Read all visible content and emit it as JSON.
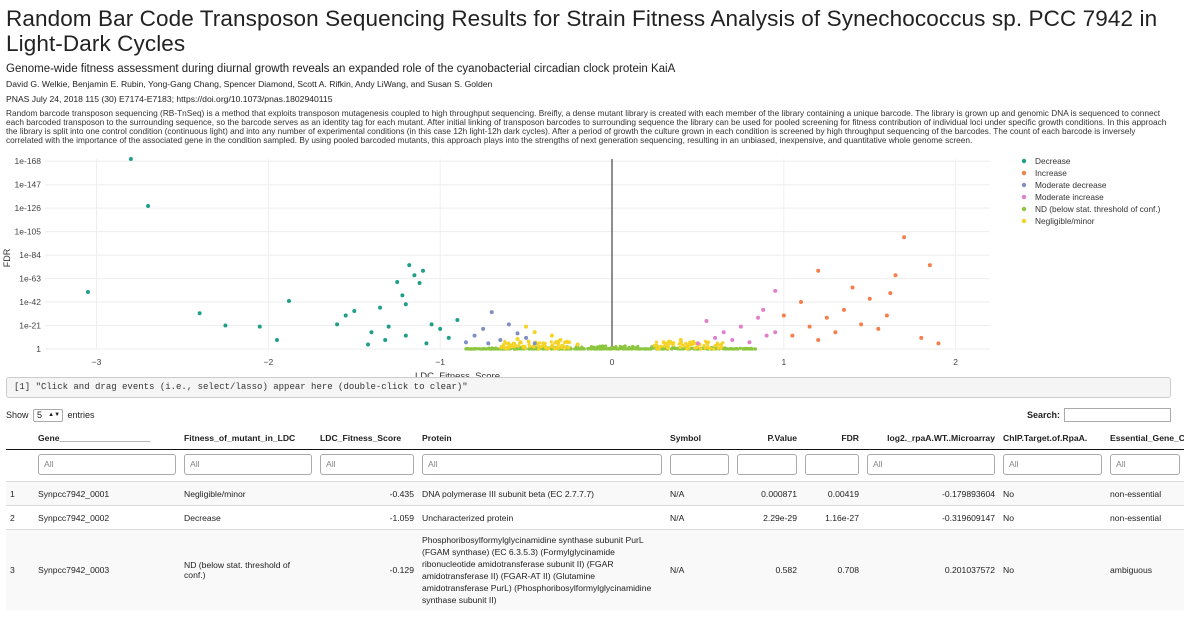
{
  "header": {
    "title": "Random Bar Code Transposon Sequencing Results for Strain Fitness Analysis of Synechococcus sp. PCC 7942 in Light-Dark Cycles",
    "subtitle": "Genome-wide fitness assessment during diurnal growth reveals an expanded role of the cyanobacterial circadian clock protein KaiA",
    "authors": "David G. Welkie, Benjamin E. Rubin, Yong-Gang Chang, Spencer Diamond, Scott A. Rifkin, Andy LiWang, and Susan S. Golden",
    "citation": "PNAS July 24, 2018 115 (30) E7174-E7183; https://doi.org/10.1073/pnas.1802940115",
    "abstract": "Random barcode transposon sequencing (RB-TnSeq) is a method that exploits transposon mutagenesis coupled to high throughput sequencing. Breifly, a dense mutant library is created with each member of the library containing a unique barcode. The library is grown up and genomic DNA is sequenced to connect each barcoded transposon to the surrounding sequence, so the barcode serves as an identity tag for each mutant. After initial linking of transposon barcodes to surrounding sequence the library can be used for pooled screening for fitness contribution of individual loci under specific growth conditions. In this approach the library is split into one control condition (continuous light) and into any number of experimental conditions (in this case 12h light-12h dark cycles). After a period of growth the culture grown in each condition is screened by high throughput sequencing of the barcodes. The count of each barcode is inversely correlated with the importance of the associated gene in the condition sampled. By using pooled barcoded mutants, this approach plays into the strengths of next generation sequencing, resulting in an unbiased, inexpensive, and quantitative whole genome screen."
  },
  "chart_data": {
    "type": "scatter",
    "xlabel": "LDC_Fitness_Score",
    "ylabel": "FDR",
    "xlim": [
      -3.3,
      2.2
    ],
    "x_ticks": [
      -3,
      -2,
      -1,
      0,
      1,
      2
    ],
    "y_ticks": [
      "1",
      "1e-21",
      "1e-42",
      "1e-63",
      "1e-84",
      "1e-105",
      "1e-126",
      "1e-147",
      "1e-168"
    ],
    "y_scale": "log (inverted)",
    "legend_position": "top-right",
    "series": [
      {
        "name": "Decrease",
        "color": "#1f9e89",
        "points": [
          [
            -2.8,
            170
          ],
          [
            -2.7,
            128
          ],
          [
            -3.05,
            51
          ],
          [
            -2.4,
            32
          ],
          [
            -2.25,
            21
          ],
          [
            -2.05,
            20
          ],
          [
            -1.95,
            8
          ],
          [
            -1.88,
            43
          ],
          [
            -1.6,
            22
          ],
          [
            -1.55,
            30
          ],
          [
            -1.5,
            34
          ],
          [
            -1.35,
            37
          ],
          [
            -1.25,
            60
          ],
          [
            -1.22,
            48
          ],
          [
            -1.2,
            40
          ],
          [
            -1.18,
            75
          ],
          [
            -1.15,
            66
          ],
          [
            -1.12,
            59
          ],
          [
            -1.1,
            70
          ],
          [
            -1.3,
            20
          ],
          [
            -1.4,
            15
          ],
          [
            -1.32,
            8
          ],
          [
            -1.05,
            22
          ],
          [
            -1.0,
            18
          ],
          [
            -0.95,
            10
          ],
          [
            -1.42,
            4
          ],
          [
            -1.2,
            12
          ],
          [
            -1.08,
            5
          ],
          [
            -0.9,
            26
          ]
        ]
      },
      {
        "name": "Increase",
        "color": "#f57f4c",
        "points": [
          [
            1.7,
            100
          ],
          [
            1.85,
            75
          ],
          [
            1.65,
            66
          ],
          [
            1.4,
            55
          ],
          [
            1.5,
            45
          ],
          [
            1.2,
            70
          ],
          [
            1.1,
            42
          ],
          [
            1.0,
            30
          ],
          [
            1.15,
            20
          ],
          [
            1.25,
            28
          ],
          [
            1.3,
            15
          ],
          [
            1.45,
            22
          ],
          [
            1.55,
            18
          ],
          [
            1.6,
            30
          ],
          [
            1.8,
            10
          ],
          [
            1.9,
            5
          ],
          [
            1.35,
            35
          ],
          [
            1.05,
            12
          ],
          [
            1.2,
            8
          ],
          [
            1.62,
            50
          ]
        ]
      },
      {
        "name": "Moderate decrease",
        "color": "#7f8ec4",
        "points": [
          [
            -0.7,
            33
          ],
          [
            -0.6,
            22
          ],
          [
            -0.75,
            18
          ],
          [
            -0.8,
            12
          ],
          [
            -0.55,
            14
          ],
          [
            -0.5,
            10
          ],
          [
            -0.65,
            8
          ],
          [
            -0.85,
            6
          ],
          [
            -0.45,
            5
          ],
          [
            -0.72,
            5
          ]
        ]
      },
      {
        "name": "Moderate increase",
        "color": "#e07fcc",
        "points": [
          [
            0.95,
            52
          ],
          [
            0.55,
            25
          ],
          [
            0.75,
            20
          ],
          [
            0.85,
            28
          ],
          [
            0.65,
            15
          ],
          [
            0.9,
            12
          ],
          [
            0.6,
            10
          ],
          [
            0.7,
            8
          ],
          [
            0.8,
            6
          ],
          [
            0.5,
            5
          ],
          [
            0.95,
            15
          ],
          [
            0.88,
            35
          ]
        ]
      },
      {
        "name": "ND (below stat. threshold of conf.)",
        "color": "#8cc63f",
        "points": []
      },
      {
        "name": "Negligible/minor",
        "color": "#f5d327",
        "points": [
          [
            -0.5,
            20
          ],
          [
            -0.45,
            15
          ],
          [
            -0.35,
            12
          ],
          [
            -0.55,
            9
          ],
          [
            -0.3,
            8
          ],
          [
            -0.25,
            6
          ],
          [
            -0.4,
            5
          ],
          [
            -0.2,
            4
          ],
          [
            0.3,
            6
          ],
          [
            0.35,
            5
          ],
          [
            0.45,
            4
          ],
          [
            0.25,
            3
          ],
          [
            0.4,
            8
          ]
        ]
      }
    ]
  },
  "console": {
    "text": "[1] \"Click and drag events (i.e., select/lasso) appear here (double-click to clear)\""
  },
  "table_controls": {
    "show_label": "Show",
    "entries_value": "5",
    "entries_label": "entries",
    "search_label": "Search:"
  },
  "table": {
    "columns": [
      "Gene___________________",
      "Fitness_of_mutant_in_LDC",
      "LDC_Fitness_Score",
      "Protein",
      "Symbol",
      "P.Value",
      "FDR",
      "log2._rpaA.WT..Microarray",
      "ChIP.Target.of.RpaA.",
      "Essential_Gene_CLC"
    ],
    "filter_placeholder": "All",
    "rows": [
      {
        "idx": "1",
        "gene": "Synpcc7942_0001",
        "fitness": "Negligible/minor",
        "score": "-0.435",
        "protein": "DNA polymerase III subunit beta (EC 2.7.7.7)",
        "symbol": "N/A",
        "pvalue": "0.000871",
        "fdr": "0.00419",
        "log2": "-0.179893604",
        "chip": "No",
        "essential": "non-essential"
      },
      {
        "idx": "2",
        "gene": "Synpcc7942_0002",
        "fitness": "Decrease",
        "score": "-1.059",
        "protein": "Uncharacterized protein",
        "symbol": "N/A",
        "pvalue": "2.29e-29",
        "fdr": "1.16e-27",
        "log2": "-0.319609147",
        "chip": "No",
        "essential": "non-essential"
      },
      {
        "idx": "3",
        "gene": "Synpcc7942_0003",
        "fitness": "ND (below stat. threshold of conf.)",
        "score": "-0.129",
        "protein": "Phosphoribosylformylglycinamidine synthase subunit PurL (FGAM synthase) (EC 6.3.5.3) (Formylglycinamide ribonucleotide amidotransferase subunit II) (FGAR amidotransferase II) (FGAR-AT II) (Glutamine amidotransferase PurL) (Phosphoribosylformylglycinamidine synthase subunit II)",
        "symbol": "N/A",
        "pvalue": "0.582",
        "fdr": "0.708",
        "log2": "0.201037572",
        "chip": "No",
        "essential": "ambiguous"
      }
    ]
  }
}
